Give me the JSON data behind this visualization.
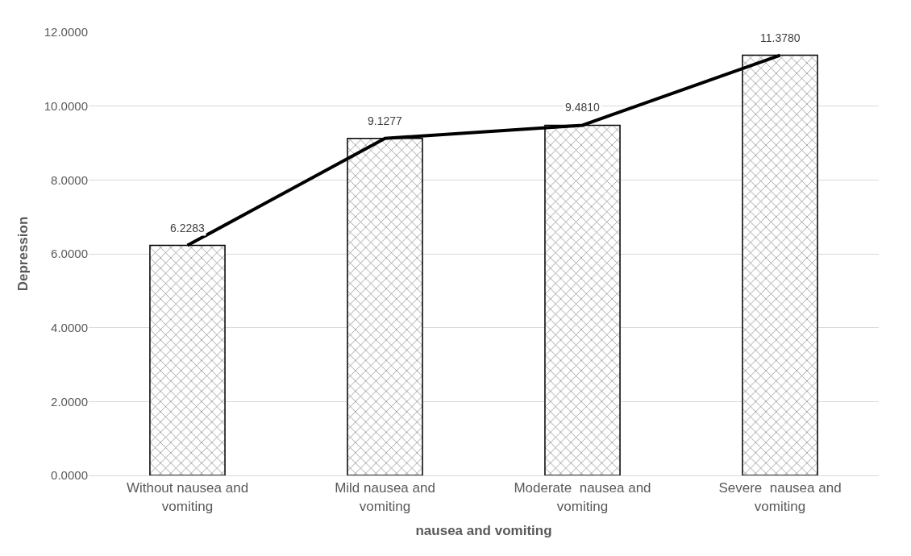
{
  "chart_data": {
    "type": "bar",
    "xlabel": "nausea and vomiting",
    "ylabel": "Depression",
    "categories": [
      "Without nausea and vomiting",
      "Mild nausea and vomiting",
      "Moderate  nausea and vomiting",
      "Severe  nausea and vomiting"
    ],
    "series": [
      {
        "color": "#000000",
        "values": [
          6.2283,
          9.1277,
          9.481,
          11.378
        ],
        "value_labels": [
          "6.2283",
          "9.1277",
          "9.4810",
          "11.3780"
        ]
      },
      {
        "type": "line",
        "color": "#000000",
        "values": [
          6.2283,
          9.1277,
          9.481,
          11.378
        ]
      }
    ],
    "ylim": [
      0,
      12
    ],
    "yticks": [
      {
        "value": 0,
        "label": "0.0000"
      },
      {
        "value": 2,
        "label": "2.0000"
      },
      {
        "value": 4,
        "label": "4.0000"
      },
      {
        "value": 6,
        "label": "6.0000"
      },
      {
        "value": 8,
        "label": "8.0000"
      },
      {
        "value": 10,
        "label": "10.0000"
      },
      {
        "value": 12,
        "label": "12.0000"
      }
    ],
    "grid": "y",
    "marker": "none",
    "line_style": "solid"
  }
}
